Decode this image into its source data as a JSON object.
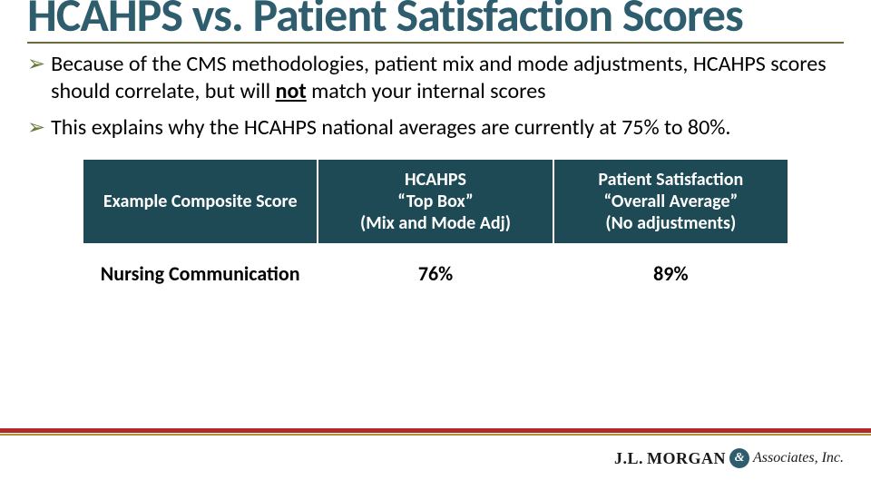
{
  "title": "HCAHPS vs. Patient Satisfaction Scores",
  "title_color": "#2e5e6e",
  "rule_color": "#6a6a3a",
  "bullet_arrow_color": "#6a7a3a",
  "bullets": [
    {
      "pre": " Because of the CMS methodologies, patient mix and mode adjustments, HCAHPS scores should correlate, but will ",
      "emph": "not",
      "post": " match your internal scores"
    },
    {
      "pre": "This explains why the HCAHPS national averages are currently at 75% to 80%.",
      "emph": "",
      "post": ""
    }
  ],
  "table": {
    "header_bg": "#1e4a56",
    "header_fg": "#ffffff",
    "columns": [
      "Example Composite Score",
      "HCAHPS\n“Top Box”\n(Mix and Mode Adj)",
      "Patient Satisfaction\n“Overall Average”\n(No adjustments)"
    ],
    "rows": [
      [
        "Nursing Communication",
        "76%",
        "89%"
      ]
    ],
    "header_fontsize": 20,
    "cell_fontsize": 22
  },
  "footer": {
    "red": "#b02a2a",
    "gold": "#b09030"
  },
  "logo": {
    "jl": "J.L.",
    "morgan": "MORGAN",
    "amp": "&",
    "assoc": "Associates, Inc.",
    "badge_bg": "#2e5e6e"
  }
}
